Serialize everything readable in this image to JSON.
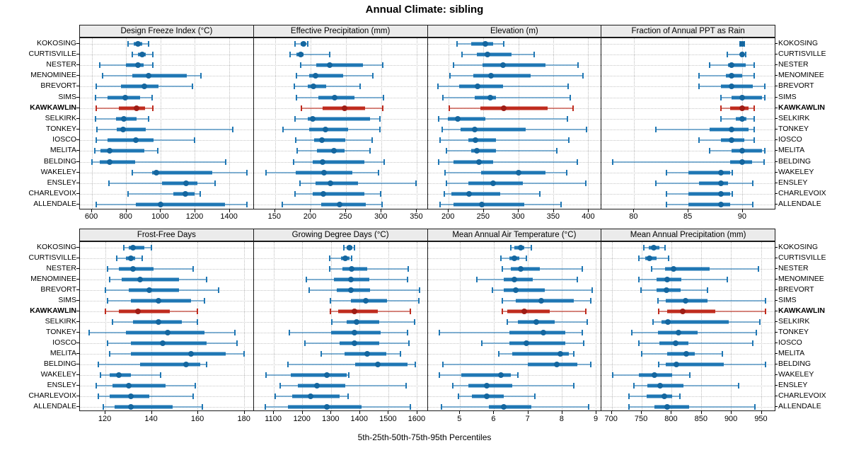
{
  "title": "Annual Climate: sibling",
  "footer": "5th-25th-50th-75th-95th Percentiles",
  "highlight_station": "KAWKAWLIN",
  "colors": {
    "normal": "#1f77b4",
    "normal_whisker": "rgba(31,119,180,0.55)",
    "normal_dot": "#14669f",
    "highlight": "#bf2b1e",
    "highlight_whisker": "rgba(191,43,30,0.55)",
    "highlight_dot": "#9f1d15",
    "strip_bg": "#ebebeb",
    "grid": "#c6c6c6",
    "border": "#1a1a1a"
  },
  "chart_data": {
    "type": "dotplot",
    "subtype": "trellis-percentile-intervals",
    "percentiles": [
      5,
      25,
      50,
      75,
      95
    ],
    "legend_position": "none",
    "grid": "dotted",
    "xlabel": "5th-25th-50th-75th-95th Percentiles",
    "stations": [
      "KOKOSING",
      "CURTISVILLE",
      "NESTER",
      "MENOMINEE",
      "BREVORT",
      "SIMS",
      "KAWKAWLIN",
      "SELKIRK",
      "TONKEY",
      "IOSCO",
      "MELITA",
      "BELDING",
      "WAKELEY",
      "ENSLEY",
      "CHARLEVOIX",
      "ALLENDALE"
    ],
    "panels": [
      {
        "title": "Design Freeze Index (°C)",
        "row": 0,
        "col": 0,
        "xlim": [
          530,
          1540
        ],
        "ticks": [
          600,
          800,
          1000,
          1200,
          1400
        ],
        "series": [
          [
            810,
            845,
            870,
            895,
            930
          ],
          [
            835,
            870,
            895,
            915,
            955
          ],
          [
            645,
            800,
            870,
            900,
            955
          ],
          [
            660,
            835,
            930,
            1155,
            1235
          ],
          [
            625,
            770,
            905,
            990,
            1185
          ],
          [
            620,
            690,
            795,
            880,
            950
          ],
          [
            625,
            755,
            860,
            910,
            955
          ],
          [
            620,
            740,
            785,
            860,
            930
          ],
          [
            630,
            745,
            780,
            915,
            1420
          ],
          [
            625,
            690,
            855,
            960,
            1200
          ],
          [
            615,
            650,
            705,
            905,
            985
          ],
          [
            600,
            645,
            705,
            850,
            1380
          ],
          [
            835,
            950,
            975,
            1300,
            1505
          ],
          [
            700,
            1010,
            1150,
            1215,
            1320
          ],
          [
            810,
            1075,
            1145,
            1200,
            1230
          ],
          [
            625,
            855,
            1000,
            1375,
            1505
          ]
        ]
      },
      {
        "title": "Effective Precipitation (mm)",
        "row": 0,
        "col": 1,
        "xlim": [
          120,
          365
        ],
        "ticks": [
          150,
          200,
          250,
          300,
          350
        ],
        "series": [
          [
            178,
            186,
            190,
            193,
            196
          ],
          [
            171,
            180,
            186,
            190,
            227
          ],
          [
            186,
            208,
            227,
            274,
            302
          ],
          [
            180,
            198,
            207,
            246,
            288
          ],
          [
            177,
            196,
            204,
            222,
            270
          ],
          [
            180,
            211,
            234,
            262,
            303
          ],
          [
            187,
            217,
            248,
            277,
            302
          ],
          [
            178,
            196,
            203,
            284,
            298
          ],
          [
            161,
            198,
            221,
            253,
            298
          ],
          [
            179,
            205,
            216,
            249,
            287
          ],
          [
            181,
            209,
            233,
            248,
            284
          ],
          [
            176,
            203,
            217,
            276,
            304
          ],
          [
            137,
            179,
            219,
            259,
            296
          ],
          [
            185,
            207,
            228,
            267,
            349
          ],
          [
            178,
            203,
            218,
            276,
            299
          ],
          [
            160,
            215,
            241,
            278,
            301
          ]
        ]
      },
      {
        "title": "Elevation (m)",
        "row": 0,
        "col": 2,
        "xlim": [
          170,
          418
        ],
        "ticks": [
          200,
          250,
          300,
          350,
          400
        ],
        "series": [
          [
            212,
            232,
            253,
            264,
            279
          ],
          [
            219,
            240,
            256,
            290,
            322
          ],
          [
            207,
            249,
            278,
            339,
            385
          ],
          [
            202,
            235,
            261,
            317,
            392
          ],
          [
            185,
            215,
            241,
            278,
            371
          ],
          [
            192,
            237,
            260,
            268,
            374
          ],
          [
            201,
            245,
            279,
            342,
            378
          ],
          [
            186,
            199,
            213,
            253,
            370
          ],
          [
            191,
            217,
            237,
            310,
            397
          ],
          [
            188,
            228,
            238,
            268,
            372
          ],
          [
            197,
            232,
            240,
            268,
            355
          ],
          [
            186,
            207,
            243,
            264,
            384
          ],
          [
            195,
            246,
            300,
            339,
            369
          ],
          [
            197,
            228,
            264,
            306,
            396
          ],
          [
            194,
            204,
            229,
            274,
            331
          ],
          [
            188,
            207,
            248,
            308,
            361
          ]
        ]
      },
      {
        "title": "Fraction of Annual PPT as Rain",
        "row": 0,
        "col": 3,
        "xlim": [
          77,
          93
        ],
        "ticks": [
          80,
          85,
          90
        ],
        "series": [
          [
            89.8,
            89.9,
            90,
            90.1,
            90.2
          ],
          [
            88.6,
            89.8,
            90,
            90.1,
            90.3
          ],
          [
            87,
            88.7,
            89,
            90.3,
            91.1
          ],
          [
            86,
            88.5,
            89,
            90,
            91.1
          ],
          [
            86,
            88,
            89,
            91,
            92.1
          ],
          [
            88,
            89,
            90,
            91.8,
            92.1
          ],
          [
            88,
            88.9,
            90,
            90.6,
            91.1
          ],
          [
            88,
            89.4,
            90,
            90.4,
            91.1
          ],
          [
            82,
            87,
            89,
            90.6,
            91.1
          ],
          [
            86,
            88,
            89,
            90.2,
            91.1
          ],
          [
            87,
            89,
            90,
            91.8,
            92.1
          ],
          [
            78,
            88.9,
            90,
            90.9,
            92
          ],
          [
            83,
            85,
            88,
            88.9,
            89.1
          ],
          [
            82,
            86,
            88,
            88.7,
            91
          ],
          [
            83,
            85,
            88,
            88.9,
            89.1
          ],
          [
            83,
            85,
            88,
            88.9,
            91
          ]
        ]
      },
      {
        "title": "Frost-Free Days",
        "row": 1,
        "col": 0,
        "xlim": [
          109,
          184
        ],
        "ticks": [
          120,
          140,
          160,
          180
        ],
        "series": [
          [
            128,
            130,
            132,
            137,
            140
          ],
          [
            125,
            129,
            131,
            133,
            136
          ],
          [
            121,
            126,
            132,
            141,
            158
          ],
          [
            122,
            127,
            135,
            152,
            164
          ],
          [
            120,
            130,
            139,
            152,
            169
          ],
          [
            121,
            131,
            143,
            157,
            163
          ],
          [
            120,
            126,
            134,
            148,
            160
          ],
          [
            123,
            132,
            143,
            153,
            160
          ],
          [
            113,
            129,
            147,
            163,
            176
          ],
          [
            121,
            131,
            145,
            164,
            177
          ],
          [
            122,
            131,
            157,
            172,
            180
          ],
          [
            117,
            135,
            155,
            161,
            164
          ],
          [
            118,
            122,
            126,
            131,
            144
          ],
          [
            116,
            123,
            130,
            146,
            159
          ],
          [
            117,
            122,
            131,
            139,
            158
          ],
          [
            119,
            124,
            131,
            149,
            162
          ]
        ]
      },
      {
        "title": "Growing Degree Days (°C)",
        "row": 1,
        "col": 1,
        "xlim": [
          1030,
          1636
        ],
        "ticks": [
          1100,
          1200,
          1300,
          1400,
          1500,
          1600
        ],
        "series": [
          [
            1345,
            1355,
            1365,
            1375,
            1381
          ],
          [
            1295,
            1335,
            1350,
            1365,
            1372
          ],
          [
            1295,
            1340,
            1373,
            1426,
            1570
          ],
          [
            1215,
            1310,
            1370,
            1435,
            1567
          ],
          [
            1224,
            1320,
            1371,
            1437,
            1610
          ],
          [
            1298,
            1371,
            1422,
            1497,
            1608
          ],
          [
            1298,
            1325,
            1383,
            1464,
            1579
          ],
          [
            1304,
            1355,
            1389,
            1470,
            1592
          ],
          [
            1154,
            1300,
            1381,
            1475,
            1569
          ],
          [
            1209,
            1330,
            1383,
            1470,
            1573
          ],
          [
            1267,
            1348,
            1428,
            1493,
            1542
          ],
          [
            1150,
            1385,
            1465,
            1567,
            1594
          ],
          [
            1073,
            1160,
            1286,
            1355,
            1363
          ],
          [
            1121,
            1185,
            1250,
            1350,
            1563
          ],
          [
            1104,
            1164,
            1228,
            1330,
            1360
          ],
          [
            1071,
            1150,
            1286,
            1406,
            1578
          ]
        ]
      },
      {
        "title": "Mean Annual Air Temperature (°C)",
        "row": 1,
        "col": 2,
        "xlim": [
          4.05,
          9.15
        ],
        "ticks": [
          5,
          6,
          7,
          8,
          9
        ],
        "series": [
          [
            6.5,
            6.6,
            6.8,
            6.9,
            7.1
          ],
          [
            6.2,
            6.45,
            6.6,
            6.75,
            6.95
          ],
          [
            6.25,
            6.5,
            6.8,
            7.35,
            8.6
          ],
          [
            5.5,
            6.3,
            6.6,
            7.15,
            8.45
          ],
          [
            5.95,
            6.3,
            6.65,
            7.5,
            8.9
          ],
          [
            6.25,
            6.65,
            7.4,
            8.35,
            8.85
          ],
          [
            6.25,
            6.4,
            6.9,
            7.65,
            8.7
          ],
          [
            6.4,
            6.7,
            7.25,
            7.8,
            8.75
          ],
          [
            4.4,
            6.45,
            7.45,
            8.1,
            8.6
          ],
          [
            5.65,
            6.45,
            6.95,
            8.1,
            8.65
          ],
          [
            6.15,
            6.55,
            7.95,
            8.2,
            8.35
          ],
          [
            4.5,
            7.0,
            7.85,
            8.45,
            8.85
          ],
          [
            4.4,
            5.05,
            6.2,
            6.5,
            6.7
          ],
          [
            4.8,
            5.25,
            5.8,
            6.55,
            8.35
          ],
          [
            4.95,
            5.35,
            5.8,
            6.3,
            7.2
          ],
          [
            4.45,
            5.85,
            6.3,
            7.1,
            8.8
          ]
        ]
      },
      {
        "title": "Mean Annual Precipitation (mm)",
        "row": 1,
        "col": 3,
        "xlim": [
          683,
          973
        ],
        "ticks": [
          700,
          750,
          800,
          850,
          900,
          950
        ],
        "series": [
          [
            754,
            762,
            770,
            780,
            789
          ],
          [
            746,
            756,
            763,
            775,
            795
          ],
          [
            767,
            789,
            803,
            864,
            946
          ],
          [
            745,
            775,
            793,
            817,
            894
          ],
          [
            749,
            775,
            792,
            815,
            860
          ],
          [
            777,
            791,
            824,
            861,
            958
          ],
          [
            779,
            793,
            819,
            873,
            958
          ],
          [
            769,
            783,
            794,
            896,
            948
          ],
          [
            734,
            777,
            812,
            844,
            942
          ],
          [
            746,
            780,
            807,
            828,
            936
          ],
          [
            750,
            793,
            825,
            839,
            885
          ],
          [
            779,
            791,
            808,
            888,
            958
          ],
          [
            702,
            746,
            771,
            801,
            831
          ],
          [
            737,
            760,
            781,
            820,
            913
          ],
          [
            729,
            758,
            788,
            801,
            814
          ],
          [
            729,
            771,
            793,
            830,
            940
          ]
        ]
      }
    ]
  }
}
